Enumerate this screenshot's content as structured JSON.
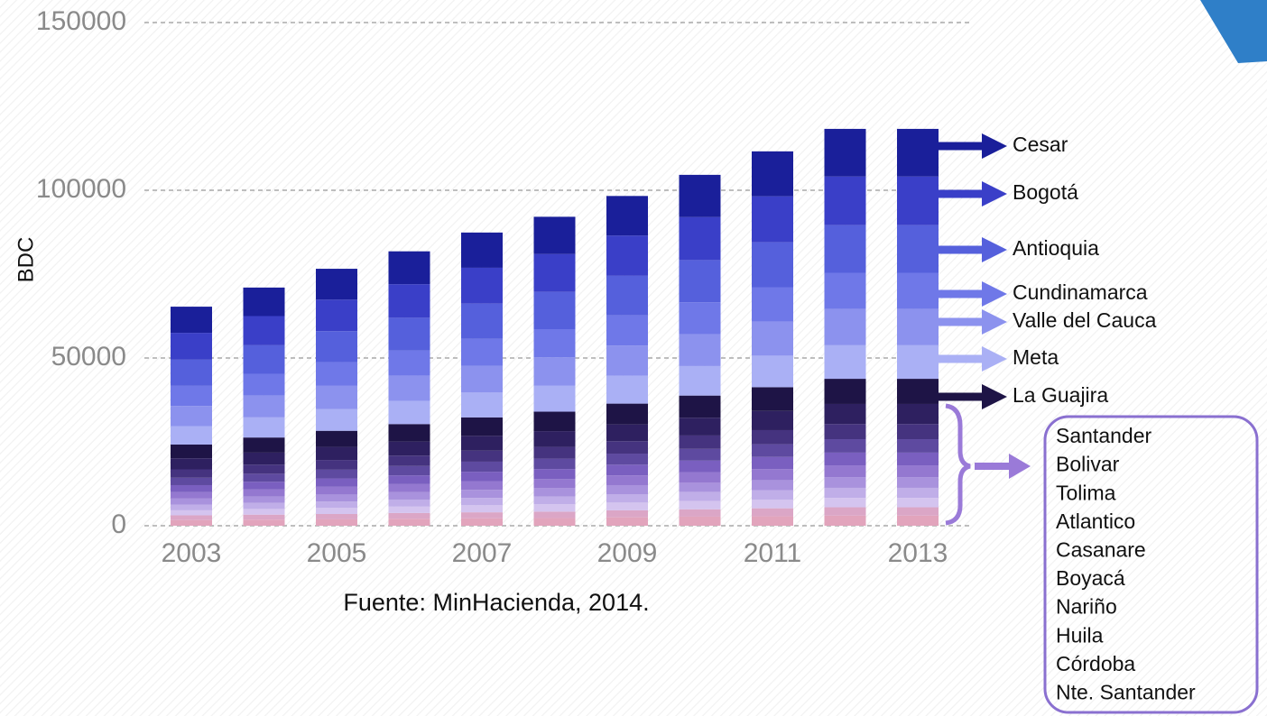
{
  "chart_data": {
    "type": "stacked_bar",
    "y_label": "BDC",
    "note": "Fuente: MinHacienda, 2014.",
    "categories": [
      2003,
      null,
      2005,
      null,
      2007,
      null,
      2009,
      null,
      2011,
      null,
      2013
    ],
    "ylim": [
      0,
      150000
    ],
    "yticks": [
      0,
      50000,
      100000,
      150000
    ],
    "grid": true,
    "series": [
      {
        "name": "Cesar",
        "color": "#1a1f9a",
        "values": [
          7800,
          8500,
          9200,
          9800,
          10500,
          11100,
          11800,
          12600,
          13400,
          14200,
          14200
        ]
      },
      {
        "name": "Bogotá",
        "color": "#3a3fc8",
        "values": [
          8000,
          8700,
          9400,
          10000,
          10700,
          11300,
          12000,
          12800,
          13700,
          14500,
          14500
        ]
      },
      {
        "name": "Antioquia",
        "color": "#5560dc",
        "values": [
          7800,
          8500,
          9200,
          9800,
          10500,
          11100,
          11800,
          12600,
          13400,
          14200,
          14200
        ]
      },
      {
        "name": "Cundinamarca",
        "color": "#6f78e8",
        "values": [
          6000,
          6500,
          7000,
          7500,
          8000,
          8400,
          9000,
          9500,
          10200,
          10800,
          10800
        ]
      },
      {
        "name": "Valle del Cauca",
        "color": "#8c92ee",
        "values": [
          6000,
          6500,
          7000,
          7500,
          8000,
          8400,
          9000,
          9500,
          10200,
          10800,
          10800
        ]
      },
      {
        "name": "Meta",
        "color": "#aab0f5",
        "values": [
          5500,
          6000,
          6500,
          6900,
          7400,
          7800,
          8300,
          8800,
          9400,
          10000,
          10000
        ]
      },
      {
        "name": "La Guajira",
        "color": "#1e1446",
        "values": [
          4100,
          4500,
          4800,
          5200,
          5500,
          5800,
          6200,
          6600,
          7100,
          7500,
          7500
        ]
      },
      {
        "name": "Santander",
        "color": "#2e2060",
        "values": [
          3300,
          3600,
          3900,
          4200,
          4400,
          4700,
          5000,
          5300,
          5700,
          6000,
          6000
        ]
      },
      {
        "name": "Bolivar",
        "color": "#45337f",
        "values": [
          2500,
          2700,
          2900,
          3100,
          3300,
          3500,
          3700,
          4000,
          4200,
          4500,
          4500
        ]
      },
      {
        "name": "Tolima",
        "color": "#5e4aa0",
        "values": [
          2200,
          2400,
          2600,
          2800,
          3000,
          3100,
          3300,
          3500,
          3800,
          4000,
          4000
        ]
      },
      {
        "name": "Atlantico",
        "color": "#7a5fc0",
        "values": [
          2100,
          2300,
          2500,
          2600,
          2800,
          3000,
          3200,
          3400,
          3600,
          3800,
          3800
        ]
      },
      {
        "name": "Casanare",
        "color": "#9478d0",
        "values": [
          1900,
          2100,
          2300,
          2400,
          2600,
          2700,
          2900,
          3100,
          3300,
          3500,
          3500
        ]
      },
      {
        "name": "Boyacá",
        "color": "#a992dd",
        "values": [
          1800,
          1900,
          2100,
          2200,
          2400,
          2500,
          2700,
          2800,
          3000,
          3200,
          3200
        ]
      },
      {
        "name": "Nariño",
        "color": "#c0aee8",
        "values": [
          1700,
          1800,
          1900,
          2100,
          2200,
          2300,
          2500,
          2700,
          2800,
          3000,
          3000
        ]
      },
      {
        "name": "Huila",
        "color": "#d4c4ef",
        "values": [
          1500,
          1700,
          1800,
          1900,
          2100,
          2200,
          2300,
          2500,
          2600,
          2800,
          2800
        ]
      },
      {
        "name": "Córdoba",
        "color": "#dba6c6",
        "values": [
          1400,
          1500,
          1600,
          1700,
          1800,
          1900,
          2100,
          2200,
          2400,
          2500,
          2500
        ]
      },
      {
        "name": "Nte. Santander",
        "color": "#e2a4bc",
        "values": [
          1700,
          1800,
          1900,
          2100,
          2200,
          2300,
          2500,
          2700,
          2800,
          3000,
          3000
        ]
      }
    ]
  }
}
